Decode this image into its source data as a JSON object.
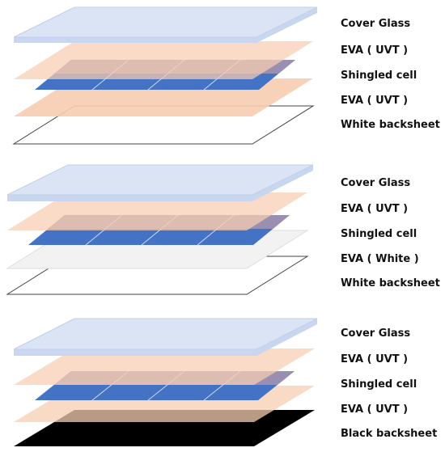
{
  "colors": {
    "glass": "#dbe4f4",
    "glass_edge": "#b9c8e6",
    "eva_uvt": "#f6cdb1",
    "cell": "#4472c4",
    "cell_dark": "#3462b4",
    "eva_white": "#f2f2f2",
    "white_backsheet": "#ffffff",
    "black_backsheet": "#000000"
  },
  "stacks": [
    {
      "labels": [
        "Cover Glass",
        "EVA ( UVT )",
        "Shingled cell",
        "EVA ( UVT )",
        "White backsheet"
      ]
    },
    {
      "labels": [
        "Cover Glass",
        "EVA ( UVT )",
        "Shingled cell",
        "EVA ( White )",
        "White backsheet"
      ]
    },
    {
      "labels": [
        "Cover Glass",
        "EVA ( UVT )",
        "Shingled cell",
        "EVA ( UVT )",
        "Black backsheet"
      ]
    }
  ]
}
